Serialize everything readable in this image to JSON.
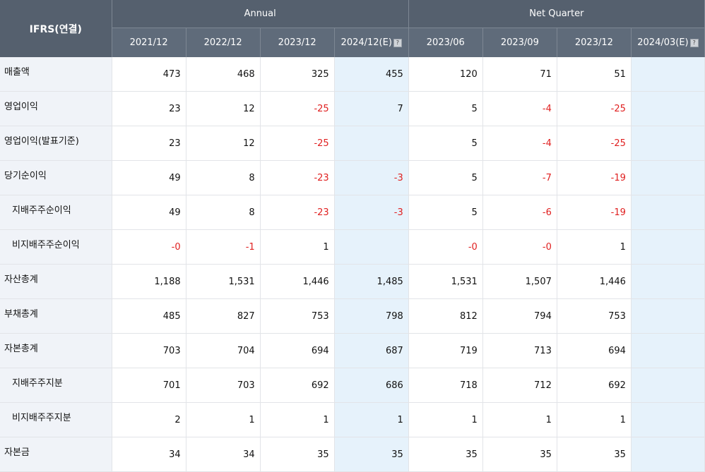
{
  "header": {
    "corner": "IFRS(연결)",
    "annual_label": "Annual",
    "quarter_label": "Net Quarter",
    "annual_cols": [
      "2021/12",
      "2022/12",
      "2023/12",
      "2024/12(E)"
    ],
    "quarter_cols": [
      "2023/06",
      "2023/09",
      "2023/12",
      "2024/03(E)"
    ],
    "estimate_icon": "question-box-icon"
  },
  "rows": [
    {
      "label": "매출액",
      "sub": false,
      "values": [
        "473",
        "468",
        "325",
        "455",
        "120",
        "71",
        "51",
        ""
      ]
    },
    {
      "label": "영업이익",
      "sub": false,
      "values": [
        "23",
        "12",
        "-25",
        "7",
        "5",
        "-4",
        "-25",
        ""
      ]
    },
    {
      "label": "영업이익(발표기준)",
      "sub": false,
      "values": [
        "23",
        "12",
        "-25",
        "",
        "5",
        "-4",
        "-25",
        ""
      ]
    },
    {
      "label": "당기순이익",
      "sub": false,
      "values": [
        "49",
        "8",
        "-23",
        "-3",
        "5",
        "-7",
        "-19",
        ""
      ]
    },
    {
      "label": "지배주주순이익",
      "sub": true,
      "values": [
        "49",
        "8",
        "-23",
        "-3",
        "5",
        "-6",
        "-19",
        ""
      ]
    },
    {
      "label": "비지배주주순이익",
      "sub": true,
      "values": [
        "-0",
        "-1",
        "1",
        "",
        "-0",
        "-0",
        "1",
        ""
      ]
    },
    {
      "label": "자산총계",
      "sub": false,
      "values": [
        "1,188",
        "1,531",
        "1,446",
        "1,485",
        "1,531",
        "1,507",
        "1,446",
        ""
      ]
    },
    {
      "label": "부채총계",
      "sub": false,
      "values": [
        "485",
        "827",
        "753",
        "798",
        "812",
        "794",
        "753",
        ""
      ]
    },
    {
      "label": "자본총계",
      "sub": false,
      "values": [
        "703",
        "704",
        "694",
        "687",
        "719",
        "713",
        "694",
        ""
      ]
    },
    {
      "label": "지배주주지분",
      "sub": true,
      "values": [
        "701",
        "703",
        "692",
        "686",
        "718",
        "712",
        "692",
        ""
      ]
    },
    {
      "label": "비지배주주지분",
      "sub": true,
      "values": [
        "2",
        "1",
        "1",
        "1",
        "1",
        "1",
        "1",
        ""
      ]
    },
    {
      "label": "자본금",
      "sub": false,
      "values": [
        "34",
        "34",
        "35",
        "35",
        "35",
        "35",
        "35",
        ""
      ]
    }
  ],
  "colors": {
    "header_bg": "#55606e",
    "label_bg": "#f0f3f8",
    "estimate_bg": "#e6f2fb",
    "negative": "#e02020"
  }
}
